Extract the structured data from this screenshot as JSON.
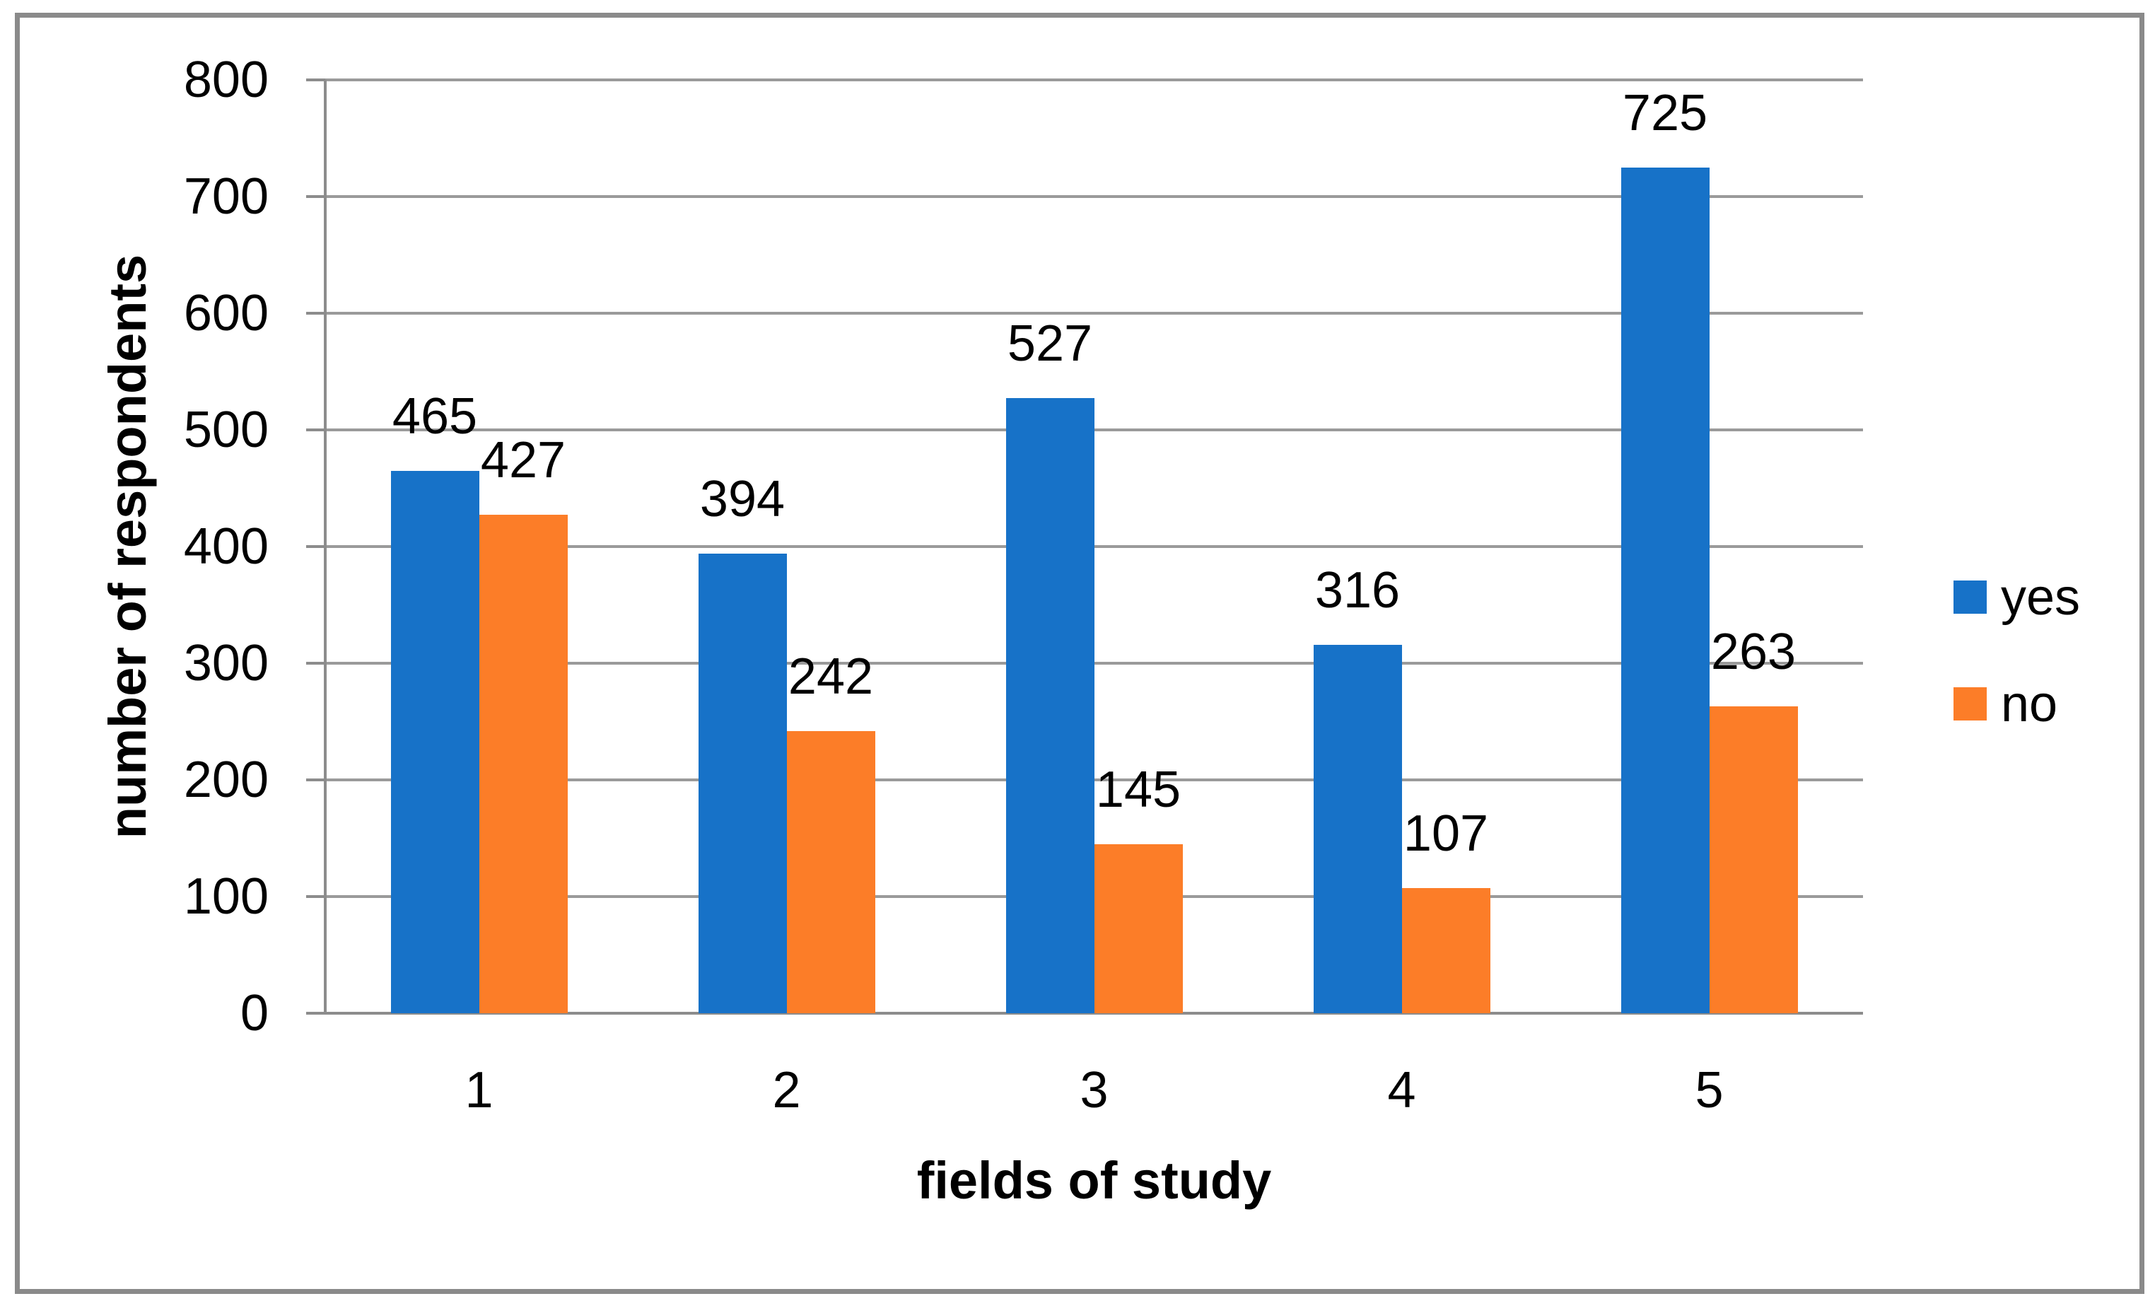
{
  "chart_data": {
    "type": "bar",
    "title": "",
    "xlabel": "fields of study",
    "ylabel": "number of respondents",
    "categories": [
      "1",
      "2",
      "3",
      "4",
      "5"
    ],
    "series": [
      {
        "name": "yes",
        "color": "#1772C8",
        "values": [
          465,
          394,
          527,
          316,
          725
        ]
      },
      {
        "name": "no",
        "color": "#FC7D28",
        "values": [
          427,
          242,
          145,
          107,
          263
        ]
      }
    ],
    "ylim": [
      0,
      800
    ],
    "ytick_interval": 100,
    "yticks": [
      "0",
      "100",
      "200",
      "300",
      "400",
      "500",
      "600",
      "700",
      "800"
    ],
    "grid": true,
    "data_labels": true,
    "legend_position": "right"
  },
  "colors": {
    "series_yes": "#1772C8",
    "series_no": "#FC7D28",
    "gridline": "#9A9A9A",
    "axis_line": "#8C8C8C",
    "frame_border": "#8A8A8A",
    "text": "#000000",
    "background": "#FFFFFF"
  }
}
